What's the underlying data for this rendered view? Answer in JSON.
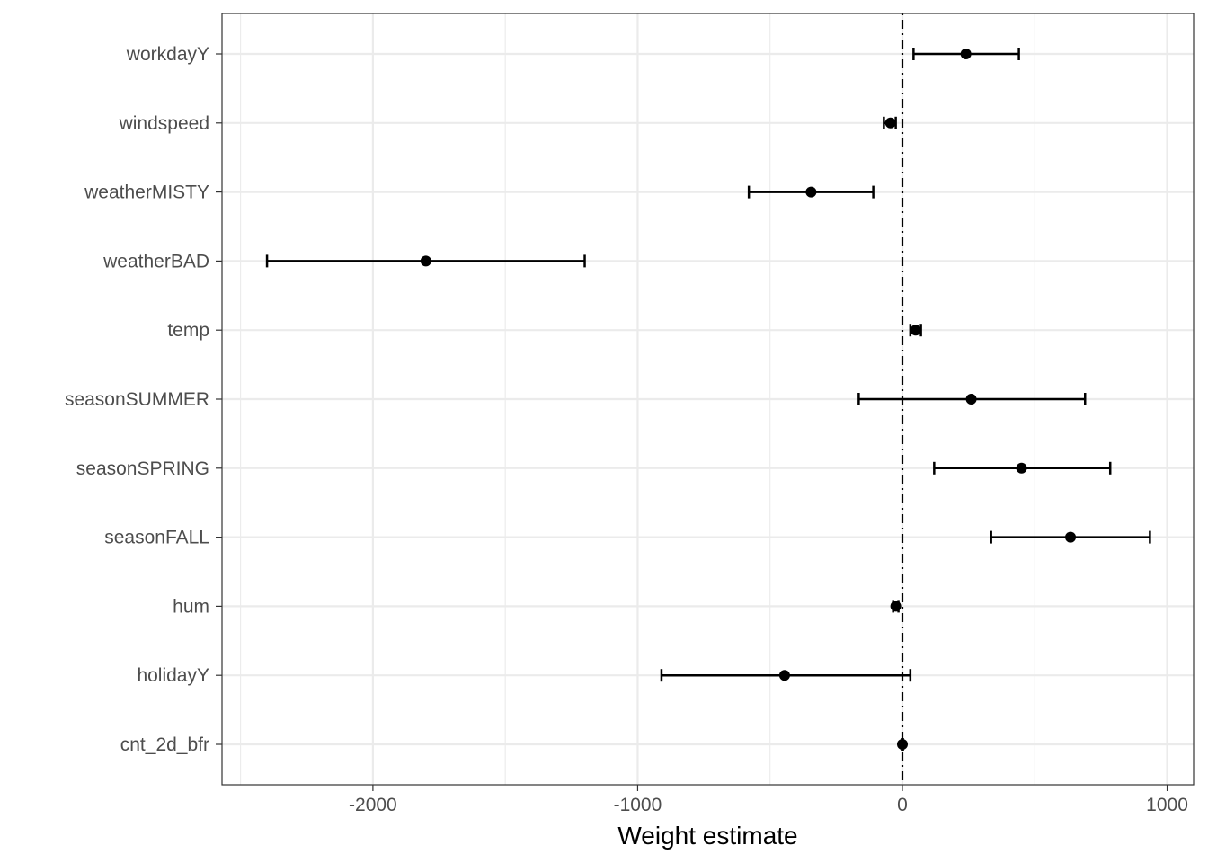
{
  "chart_data": {
    "type": "scatter",
    "subtype": "coefficient-plot-with-error-bars",
    "xlabel": "Weight estimate",
    "ylabel": "",
    "title": "",
    "xlim": [
      -2570,
      1100
    ],
    "x_ticks": [
      -2000,
      -1000,
      0,
      1000
    ],
    "x_tick_labels": [
      "-2000",
      "-1000",
      "0",
      "1000"
    ],
    "reference_line": {
      "x": 0,
      "style": "dot-dash"
    },
    "grid": true,
    "categories": [
      "workdayY",
      "windspeed",
      "weatherMISTY",
      "weatherBAD",
      "temp",
      "seasonSUMMER",
      "seasonSPRING",
      "seasonFALL",
      "hum",
      "holidayY",
      "cnt_2d_bfr"
    ],
    "estimates": [
      {
        "term": "workdayY",
        "estimate": 240,
        "lower": 42,
        "upper": 440
      },
      {
        "term": "windspeed",
        "estimate": -45,
        "lower": -70,
        "upper": -25
      },
      {
        "term": "weatherMISTY",
        "estimate": -345,
        "lower": -580,
        "upper": -110
      },
      {
        "term": "weatherBAD",
        "estimate": -1800,
        "lower": -2400,
        "upper": -1200
      },
      {
        "term": "temp",
        "estimate": 50,
        "lower": 30,
        "upper": 70
      },
      {
        "term": "seasonSUMMER",
        "estimate": 260,
        "lower": -165,
        "upper": 690
      },
      {
        "term": "seasonSPRING",
        "estimate": 450,
        "lower": 120,
        "upper": 785
      },
      {
        "term": "seasonFALL",
        "estimate": 635,
        "lower": 335,
        "upper": 935
      },
      {
        "term": "hum",
        "estimate": -25,
        "lower": -35,
        "upper": -15
      },
      {
        "term": "holidayY",
        "estimate": -445,
        "lower": -910,
        "upper": 30
      },
      {
        "term": "cnt_2d_bfr",
        "estimate": 0,
        "lower": -2,
        "upper": 2
      }
    ],
    "colors": {
      "points": "#000000",
      "grid": "#ebebeb",
      "panel_border": "#333333",
      "tick_text": "#4d4d4d"
    }
  }
}
